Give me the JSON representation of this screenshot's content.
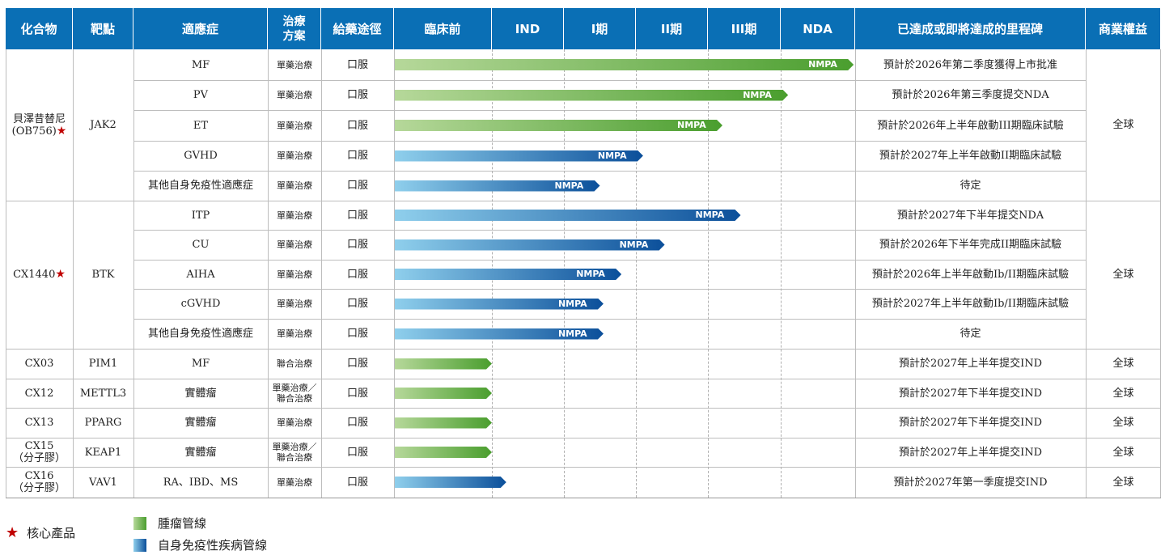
{
  "headers": {
    "compound": "化合物",
    "target": "靶點",
    "indication": "適應症",
    "regimen": "治療方案",
    "route": "給藥途徑",
    "preclinical": "臨床前",
    "ind": "IND",
    "phase1": "I期",
    "phase2": "II期",
    "phase3": "III期",
    "nda": "NDA",
    "milestone": "已達成或即將達成的里程碑",
    "rights": "商業權益"
  },
  "groups": [
    {
      "compound": "貝澤昔替尼",
      "compound_sub": "(OB756)",
      "core": true,
      "target": "JAK2",
      "rights": "全球",
      "rows": [
        0,
        1,
        2,
        3,
        4
      ]
    },
    {
      "compound": "CX1440",
      "compound_sub": "",
      "core": true,
      "target": "BTK",
      "rights": "全球",
      "rows": [
        5,
        6,
        7,
        8,
        9
      ]
    },
    {
      "compound": "CX03",
      "compound_sub": "",
      "core": false,
      "target": "PIM1",
      "rights": "全球",
      "rows": [
        10
      ]
    },
    {
      "compound": "CX12",
      "compound_sub": "",
      "core": false,
      "target": "METTL3",
      "rights": "全球",
      "rows": [
        11
      ]
    },
    {
      "compound": "CX13",
      "compound_sub": "",
      "core": false,
      "target": "PPARG",
      "rights": "全球",
      "rows": [
        12
      ]
    },
    {
      "compound": "CX15",
      "compound_sub": "（分子膠）",
      "core": false,
      "target": "KEAP1",
      "rights": "全球",
      "rows": [
        13
      ]
    },
    {
      "compound": "CX16",
      "compound_sub": "（分子膠）",
      "core": false,
      "target": "VAV1",
      "rights": "全球",
      "rows": [
        14
      ]
    }
  ],
  "rows": [
    {
      "indication": "MF",
      "regimen": "單藥治療",
      "route": "口服",
      "pipeline": "oncology",
      "progress": 5.98,
      "bar_label": "NMPA",
      "milestone": "預計於2026年第二季度獲得上市批准"
    },
    {
      "indication": "PV",
      "regimen": "單藥治療",
      "route": "口服",
      "pipeline": "oncology",
      "progress": 5.1,
      "bar_label": "NMPA",
      "milestone": "預計於2026年第三季度提交NDA"
    },
    {
      "indication": "ET",
      "regimen": "單藥治療",
      "route": "口服",
      "pipeline": "oncology",
      "progress": 4.2,
      "bar_label": "NMPA",
      "milestone": "預計於2026年上半年啟動III期臨床試驗"
    },
    {
      "indication": "GVHD",
      "regimen": "單藥治療",
      "route": "口服",
      "pipeline": "autoimmune",
      "progress": 3.1,
      "bar_label": "NMPA",
      "milestone": "預計於2027年上半年啟動II期臨床試驗"
    },
    {
      "indication": "其他自身免疫性適應症",
      "regimen": "單藥治療",
      "route": "口服",
      "pipeline": "autoimmune",
      "progress": 2.5,
      "bar_label": "NMPA",
      "milestone": "待定"
    },
    {
      "indication": "ITP",
      "regimen": "單藥治療",
      "route": "口服",
      "pipeline": "autoimmune",
      "progress": 4.45,
      "bar_label": "NMPA",
      "milestone": "預計於2027年下半年提交NDA"
    },
    {
      "indication": "CU",
      "regimen": "單藥治療",
      "route": "口服",
      "pipeline": "autoimmune",
      "progress": 3.4,
      "bar_label": "NMPA",
      "milestone": "預計於2026年下半年完成II期臨床試驗"
    },
    {
      "indication": "AIHA",
      "regimen": "單藥治療",
      "route": "口服",
      "pipeline": "autoimmune",
      "progress": 2.8,
      "bar_label": "NMPA",
      "milestone": "預計於2026年上半年啟動Ib/II期臨床試驗"
    },
    {
      "indication": "cGVHD",
      "regimen": "單藥治療",
      "route": "口服",
      "pipeline": "autoimmune",
      "progress": 2.55,
      "bar_label": "NMPA",
      "milestone": "預計於2027年上半年啟動Ib/II期臨床試驗"
    },
    {
      "indication": "其他自身免疫性適應症",
      "regimen": "單藥治療",
      "route": "口服",
      "pipeline": "autoimmune",
      "progress": 2.55,
      "bar_label": "NMPA",
      "milestone": "待定"
    },
    {
      "indication": "MF",
      "regimen": "聯合治療",
      "route": "口服",
      "pipeline": "oncology",
      "progress": 1.0,
      "bar_label": "",
      "milestone": "預計於2027年上半年提交IND"
    },
    {
      "indication": "實體瘤",
      "regimen": "單藥治療／聯合治療",
      "route": "口服",
      "pipeline": "oncology",
      "progress": 1.0,
      "bar_label": "",
      "milestone": "預計於2027年下半年提交IND"
    },
    {
      "indication": "實體瘤",
      "regimen": "單藥治療",
      "route": "口服",
      "pipeline": "oncology",
      "progress": 1.0,
      "bar_label": "",
      "milestone": "預計於2027年下半年提交IND"
    },
    {
      "indication": "實體瘤",
      "regimen": "單藥治療／聯合治療",
      "route": "口服",
      "pipeline": "oncology",
      "progress": 1.0,
      "bar_label": "",
      "milestone": "預計於2027年上半年提交IND"
    },
    {
      "indication": "RA、IBD、MS",
      "regimen": "單藥治療",
      "route": "口服",
      "pipeline": "autoimmune",
      "progress": 1.2,
      "bar_label": "",
      "milestone": "預計於2027年第一季度提交IND"
    }
  ],
  "legend": {
    "core_symbol": "★",
    "core_label": "核心產品",
    "oncology_label": "腫瘤管線",
    "autoimmune_label": "自身免疫性疾病管線"
  },
  "colors": {
    "header": "#0a6fb5",
    "oncology_start": "#b6d89a",
    "oncology_end": "#4a9e2e",
    "autoimmune_start": "#8fcfec",
    "autoimmune_end": "#0b4f9a",
    "star": "#c00000"
  }
}
